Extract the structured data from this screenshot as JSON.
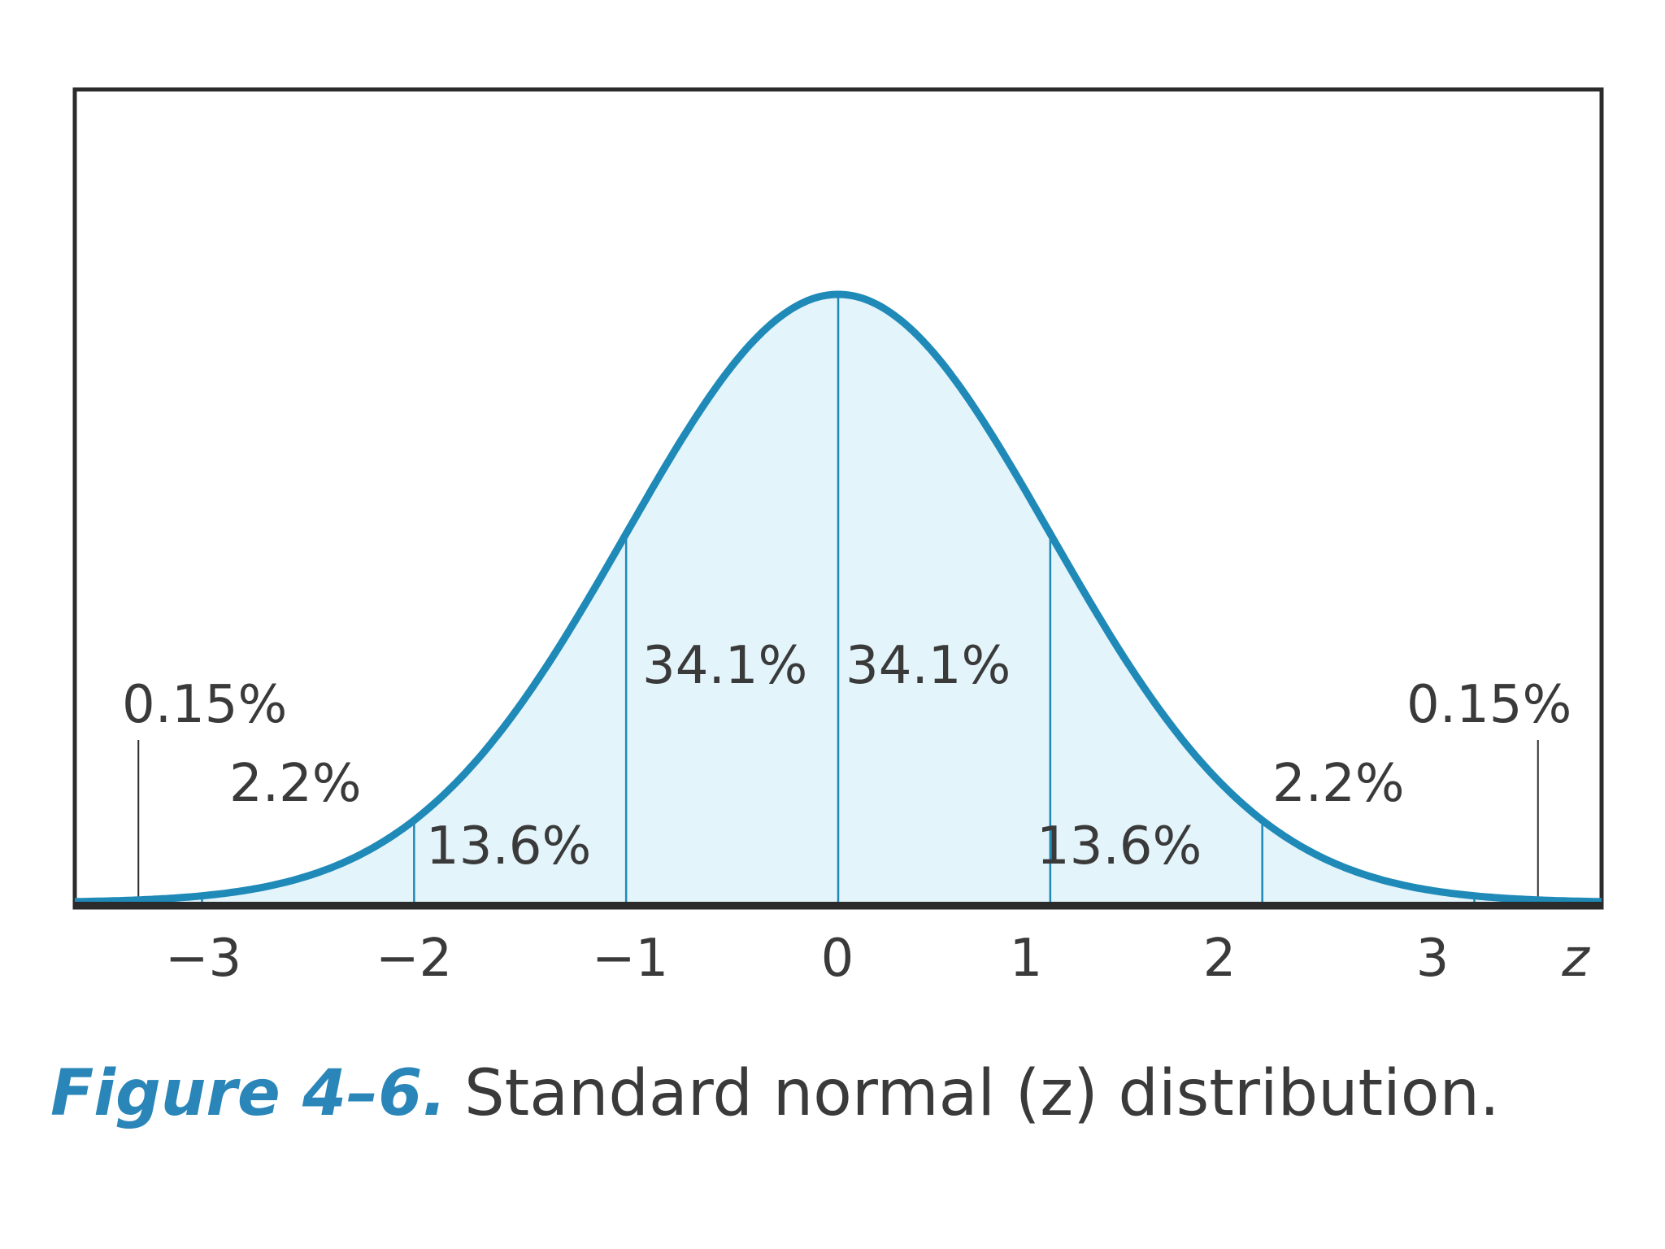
{
  "chart_data": {
    "type": "area",
    "distribution": "standard normal",
    "x_variable": "z",
    "xlim": [
      -3.6,
      3.6
    ],
    "x_ticks": [
      -3,
      -2,
      -1,
      0,
      1,
      2,
      3
    ],
    "x_tick_labels": [
      "−3",
      "−2",
      "−1",
      "0",
      "1",
      "2",
      "3"
    ],
    "x_axis_label": "z",
    "boundaries": [
      -3,
      -2,
      -1,
      0,
      1,
      2,
      3
    ],
    "tail_markers": [
      -3.3,
      3.3
    ],
    "regions": [
      {
        "from": -3.6,
        "to": -3,
        "percent": "0.15%"
      },
      {
        "from": -3,
        "to": -2,
        "percent": "2.2%"
      },
      {
        "from": -2,
        "to": -1,
        "percent": "13.6%"
      },
      {
        "from": -1,
        "to": 0,
        "percent": "34.1%"
      },
      {
        "from": 0,
        "to": 1,
        "percent": "34.1%"
      },
      {
        "from": 1,
        "to": 2,
        "percent": "13.6%"
      },
      {
        "from": 2,
        "to": 3,
        "percent": "2.2%"
      },
      {
        "from": 3,
        "to": 3.6,
        "percent": "0.15%"
      }
    ],
    "grid": false,
    "curve_color": "#1f8ab8",
    "fill_color": "#e3f4fb"
  },
  "caption": {
    "figure_number": "Figure 4–6.",
    "text": "Standard normal (z) distribution."
  }
}
